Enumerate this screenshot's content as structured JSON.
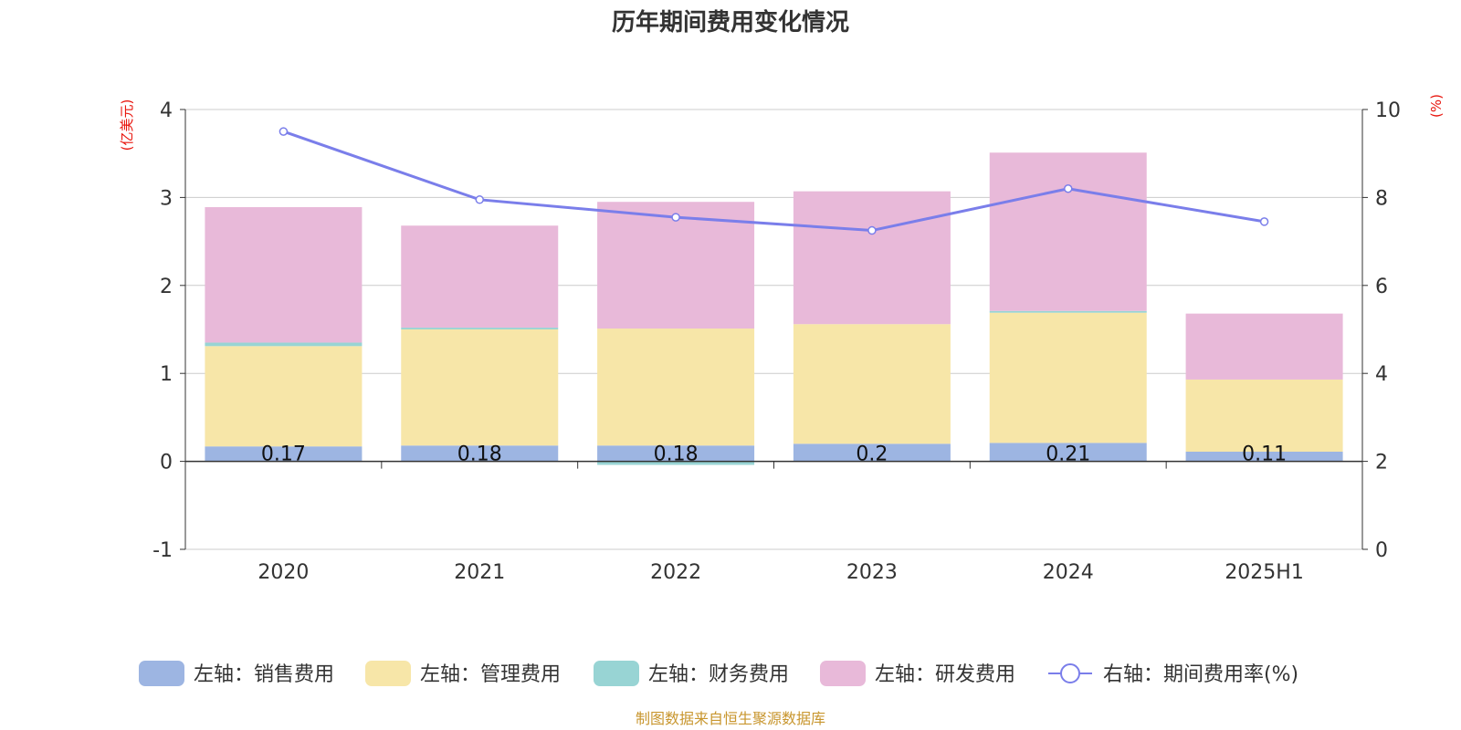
{
  "chart_data": {
    "type": "bar",
    "title": "历年期间费用变化情况",
    "y_left_unit": "(亿美元)",
    "y_right_unit": "(%)",
    "categories": [
      "2020",
      "2021",
      "2022",
      "2023",
      "2024",
      "2025H1"
    ],
    "y_left_range": [
      -1,
      4
    ],
    "y_left_ticks": [
      "-1",
      "0",
      "1",
      "2",
      "3",
      "4"
    ],
    "y_right_range": [
      0,
      10
    ],
    "y_right_ticks": [
      "0",
      "2",
      "4",
      "6",
      "8",
      "10"
    ],
    "grid": true,
    "legend_position": "bottom",
    "series": [
      {
        "name": "左轴：销售费用",
        "axis": "left",
        "type": "bar",
        "color": "#9db5e2",
        "values": [
          0.17,
          0.18,
          0.18,
          0.2,
          0.21,
          0.11
        ],
        "labels": [
          "0.17",
          "0.18",
          "0.18",
          "0.2",
          "0.21",
          "0.11"
        ]
      },
      {
        "name": "左轴：管理费用",
        "axis": "left",
        "type": "bar",
        "color": "#f7e6a8",
        "values": [
          1.14,
          1.32,
          1.33,
          1.36,
          1.48,
          0.82
        ]
      },
      {
        "name": "左轴：财务费用",
        "axis": "left",
        "type": "bar",
        "color": "#98d4d4",
        "values": [
          0.04,
          0.02,
          -0.04,
          0.0,
          0.02,
          0.0
        ]
      },
      {
        "name": "左轴：研发费用",
        "axis": "left",
        "type": "bar",
        "color": "#e8b9d9",
        "values": [
          1.54,
          1.16,
          1.44,
          1.51,
          1.8,
          0.75
        ]
      },
      {
        "name": "右轴：期间费用率(%)",
        "axis": "right",
        "type": "line",
        "color": "#7a7eea",
        "values": [
          9.5,
          7.95,
          7.55,
          7.25,
          8.2,
          7.45
        ]
      }
    ]
  },
  "footer": {
    "source": "制图数据来自恒生聚源数据库"
  }
}
